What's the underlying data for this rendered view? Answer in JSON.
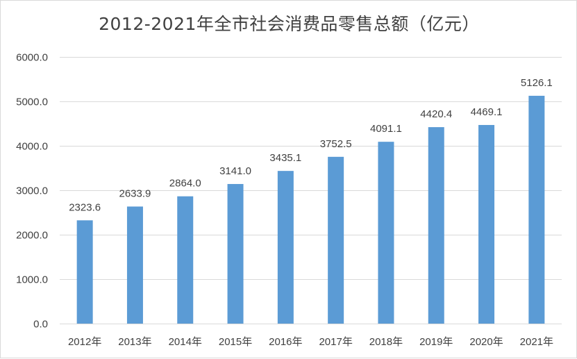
{
  "chart_data": {
    "type": "bar",
    "title": "2012-2021年全市社会消费品零售总额（亿元）",
    "categories": [
      "2012年",
      "2013年",
      "2014年",
      "2015年",
      "2016年",
      "2017年",
      "2018年",
      "2019年",
      "2020年",
      "2021年"
    ],
    "values": [
      2323.6,
      2633.9,
      2864.0,
      3141.0,
      3435.1,
      3752.5,
      4091.1,
      4420.4,
      4469.1,
      5126.1
    ],
    "value_labels": [
      "2323.6",
      "2633.9",
      "2864.0",
      "3141.0",
      "3435.1",
      "3752.5",
      "4091.1",
      "4420.4",
      "4469.1",
      "5126.1"
    ],
    "y_ticks": [
      "0.0",
      "1000.0",
      "2000.0",
      "3000.0",
      "4000.0",
      "5000.0",
      "6000.0"
    ],
    "ylim": [
      0,
      6000
    ],
    "xlabel": "",
    "ylabel": "",
    "grid": true,
    "legend": false,
    "colors": {
      "bar": "#5b9bd5",
      "grid": "#d9d9d9",
      "text": "#404040"
    }
  }
}
